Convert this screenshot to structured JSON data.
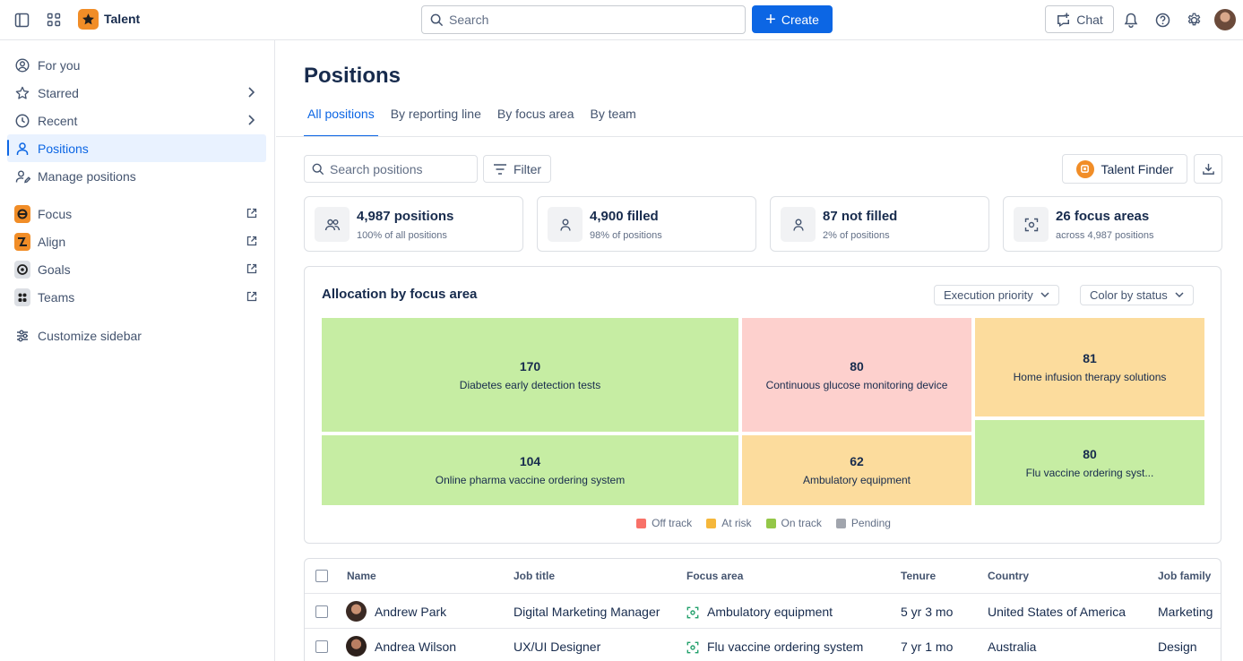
{
  "topbar": {
    "app_name": "Talent",
    "search_placeholder": "Search",
    "create_label": "Create",
    "chat_label": "Chat"
  },
  "sidebar": {
    "items": [
      {
        "label": "For you",
        "icon": "user-circle-icon"
      },
      {
        "label": "Starred",
        "icon": "star-icon"
      },
      {
        "label": "Recent",
        "icon": "clock-icon"
      },
      {
        "label": "Positions",
        "icon": "person-icon"
      },
      {
        "label": "Manage positions",
        "icon": "person-edit-icon"
      }
    ],
    "apps": [
      {
        "label": "Focus",
        "color": "#f18d27"
      },
      {
        "label": "Align",
        "color": "#f18d27"
      },
      {
        "label": "Goals",
        "color": "#dcdfe4"
      },
      {
        "label": "Teams",
        "color": "#dcdfe4"
      }
    ],
    "customize_label": "Customize sidebar"
  },
  "main": {
    "title": "Positions",
    "tabs": [
      "All positions",
      "By reporting line",
      "By focus area",
      "By team"
    ],
    "search_placeholder": "Search positions",
    "filter_label": "Filter",
    "talent_finder_label": "Talent Finder",
    "stats": [
      {
        "value": "4,987 positions",
        "sub": "100% of all positions"
      },
      {
        "value": "4,900 filled",
        "sub": "98% of positions"
      },
      {
        "value": "87 not filled",
        "sub": "2% of positions"
      },
      {
        "value": "26 focus areas",
        "sub": "across 4,987 positions"
      }
    ]
  },
  "allocation": {
    "title": "Allocation by focus area",
    "dropdown_priority": "Execution priority",
    "dropdown_color": "Color by status"
  },
  "chart_data": {
    "type": "treemap",
    "title": "Allocation by focus area",
    "items": [
      {
        "label": "Diabetes early detection tests",
        "value": 170,
        "status": "On track"
      },
      {
        "label": "Continuous glucose monitoring device",
        "value": 80,
        "status": "Off track"
      },
      {
        "label": "Home infusion therapy solutions",
        "value": 81,
        "status": "At risk"
      },
      {
        "label": "Online pharma vaccine ordering system",
        "value": 104,
        "status": "On track"
      },
      {
        "label": "Ambulatory equipment",
        "value": 62,
        "status": "At risk"
      },
      {
        "label": "Flu vaccine ordering syst...",
        "value": 80,
        "status": "On track"
      }
    ],
    "legend": [
      {
        "label": "Off track",
        "color": "#f87168"
      },
      {
        "label": "At risk",
        "color": "#f5b73b"
      },
      {
        "label": "On track",
        "color": "#94c748"
      },
      {
        "label": "Pending",
        "color": "#a1a5ad"
      }
    ],
    "fill_colors": {
      "On track": "#c6eda3",
      "Off track": "#fdd0cd",
      "At risk": "#fcdc9d"
    }
  },
  "table": {
    "columns": [
      "Name",
      "Job title",
      "Focus area",
      "Tenure",
      "Country",
      "Job family"
    ],
    "rows": [
      {
        "name": "Andrew Park",
        "title": "Digital Marketing Manager",
        "focus": "Ambulatory equipment",
        "tenure": "5 yr 3 mo",
        "country": "United States of America",
        "family": "Marketing"
      },
      {
        "name": "Andrea Wilson",
        "title": "UX/UI Designer",
        "focus": "Flu vaccine ordering system",
        "tenure": "7 yr 1 mo",
        "country": "Australia",
        "family": "Design"
      }
    ]
  }
}
